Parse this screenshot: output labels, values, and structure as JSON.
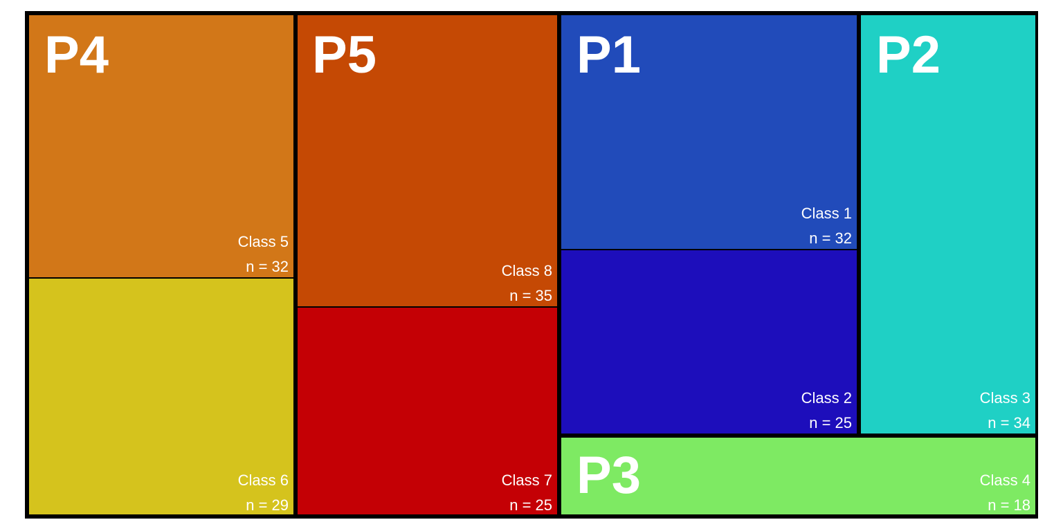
{
  "chart_data": {
    "type": "treemap",
    "title": "",
    "groups": [
      {
        "label": "P4",
        "classes": [
          {
            "name": "Class 5",
            "n_label": "n = 32",
            "value": 32,
            "color": "#D27718"
          },
          {
            "name": "Class 6",
            "n_label": "n = 29",
            "value": 29,
            "color": "#D5C31D"
          }
        ]
      },
      {
        "label": "P5",
        "classes": [
          {
            "name": "Class 8",
            "n_label": "n = 35",
            "value": 35,
            "color": "#C54904"
          },
          {
            "name": "Class 7",
            "n_label": "n = 25",
            "value": 25,
            "color": "#C40005"
          }
        ]
      },
      {
        "label": "P1",
        "classes": [
          {
            "name": "Class 1",
            "n_label": "n = 32",
            "value": 32,
            "color": "#214BBA"
          },
          {
            "name": "Class 2",
            "n_label": "n = 25",
            "value": 25,
            "color": "#1D0EBB"
          }
        ]
      },
      {
        "label": "P2",
        "classes": [
          {
            "name": "Class 3",
            "n_label": "n = 34",
            "value": 34,
            "color": "#1FD0C5"
          }
        ]
      },
      {
        "label": "P3",
        "classes": [
          {
            "name": "Class 4",
            "n_label": "n = 18",
            "value": 18,
            "color": "#7EEA63"
          }
        ]
      }
    ]
  }
}
